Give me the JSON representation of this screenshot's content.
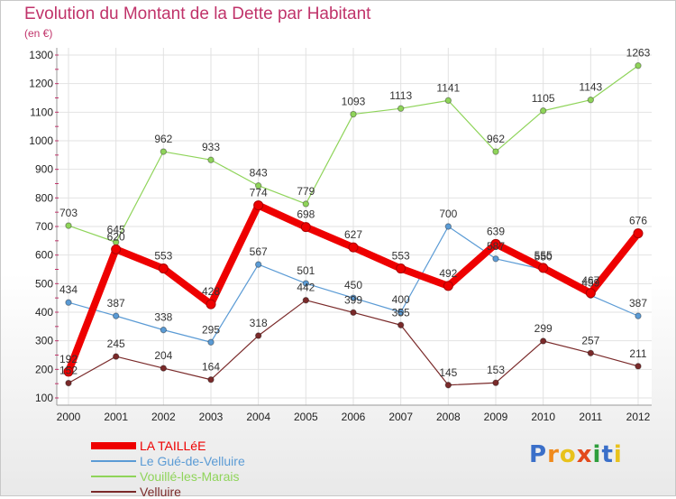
{
  "title": "Evolution du Montant de la Dette par Habitant",
  "subtitle": "(en €)",
  "brand": {
    "letters": [
      "P",
      "r",
      "o",
      "x",
      "i",
      "t",
      "i"
    ],
    "colors": [
      "#3a6fc9",
      "#f08a1c",
      "#e8c21c",
      "#e34a1c",
      "#2e9e3c",
      "#3a6fc9",
      "#e8c21c"
    ]
  },
  "chart_data": {
    "type": "line",
    "x": [
      "2000",
      "2001",
      "2002",
      "2003",
      "2004",
      "2005",
      "2006",
      "2007",
      "2008",
      "2009",
      "2010",
      "2011",
      "2012"
    ],
    "ylim": [
      100,
      1300
    ],
    "yticks": [
      "100",
      "200",
      "300",
      "400",
      "500",
      "600",
      "700",
      "800",
      "900",
      "1000",
      "1100",
      "1200",
      "1300"
    ],
    "grid": true,
    "legend_position": "bottom-left",
    "series": [
      {
        "name": "LA TAILLéE",
        "color": "#ee0000",
        "values": [
          192,
          620,
          553,
          428,
          774,
          698,
          627,
          553,
          492,
          639,
          555,
          467,
          676
        ],
        "labels": [
          "192",
          "620",
          "553",
          "428",
          "774",
          "698",
          "627",
          "553",
          "492",
          "639",
          "555",
          "467",
          "676"
        ]
      },
      {
        "name": "Le Gué-de-Velluire",
        "color": "#5b9bd5",
        "values": [
          434,
          387,
          338,
          295,
          567,
          501,
          450,
          400,
          700,
          587,
          550,
          459,
          387
        ],
        "labels": [
          "434",
          "387",
          "338",
          "295",
          "567",
          "501",
          "450",
          "400",
          "700",
          "587",
          "550",
          "459",
          "387"
        ]
      },
      {
        "name": "Vouillé-les-Marais",
        "color": "#8fd45a",
        "values": [
          703,
          645,
          962,
          933,
          843,
          779,
          1093,
          1113,
          1141,
          962,
          1105,
          1143,
          1263
        ],
        "labels": [
          "703",
          "645",
          "962",
          "933",
          "843",
          "779",
          "1093",
          "1113",
          "1141",
          "962",
          "1105",
          "1143",
          "1263"
        ]
      },
      {
        "name": "Velluire",
        "color": "#7a2a2a",
        "values": [
          152,
          245,
          204,
          164,
          318,
          442,
          399,
          355,
          145,
          153,
          299,
          257,
          211
        ],
        "labels": [
          "152",
          "245",
          "204",
          "164",
          "318",
          "442",
          "399",
          "355",
          "145",
          "153",
          "299",
          "257",
          "211"
        ]
      }
    ]
  }
}
